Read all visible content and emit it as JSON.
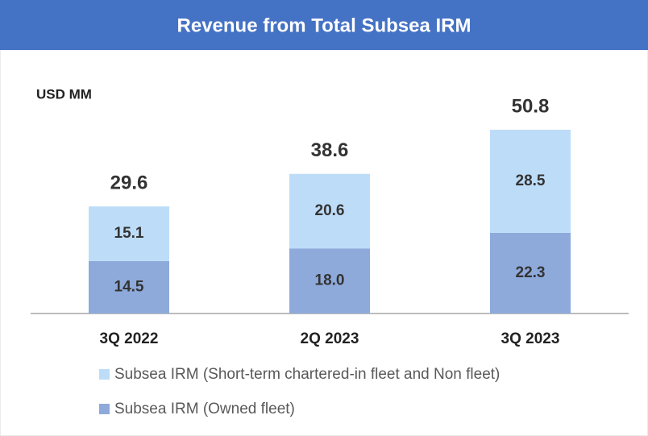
{
  "chart_data": {
    "type": "stacked_bar",
    "title": "Revenue from Total Subsea IRM",
    "unit_label": "USD MM",
    "categories": [
      "3Q 2022",
      "2Q 2023",
      "3Q 2023"
    ],
    "series": [
      {
        "name": "Subsea IRM (Owned fleet)",
        "color": "#8eaadb",
        "values": [
          14.5,
          18.0,
          22.3
        ],
        "value_labels": [
          "14.5",
          "18.0",
          "22.3"
        ]
      },
      {
        "name": "Subsea IRM (Short-term chartered-in fleet and Non fleet)",
        "color": "#bddcf8",
        "values": [
          15.1,
          20.6,
          28.5
        ]
      }
    ],
    "totals": [
      29.6,
      38.6,
      50.8
    ]
  }
}
